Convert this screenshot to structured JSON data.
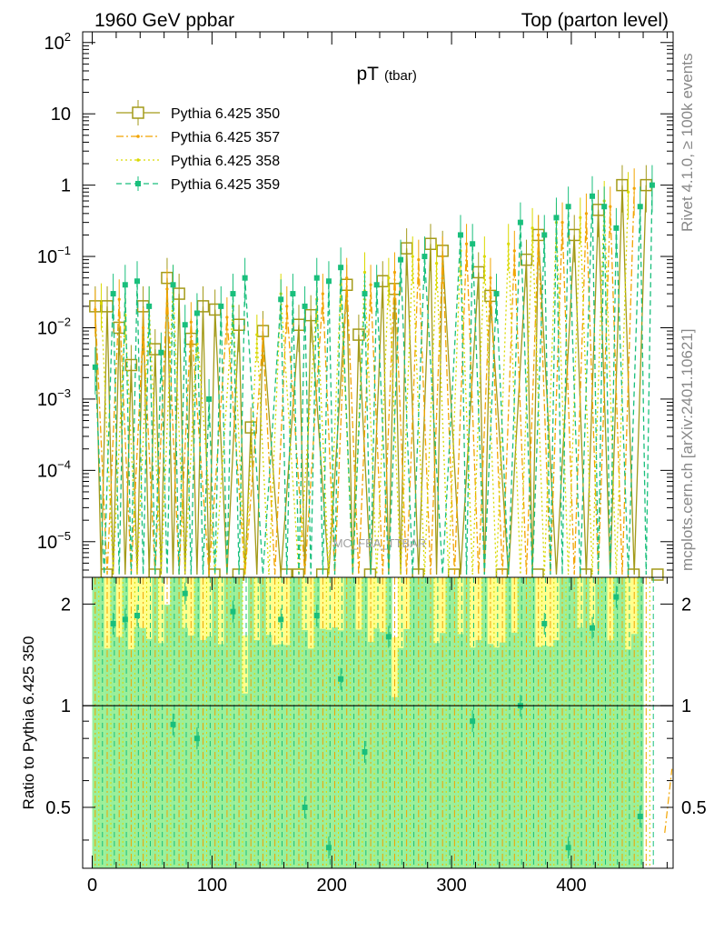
{
  "header": {
    "left": "1960 GeV ppbar",
    "right": "Top (parton level)"
  },
  "side_labels": {
    "rivet": "Rivet 4.1.0, ≥ 100k events",
    "mcplots": "mcplots.cern.ch [arXiv:2401.10621]"
  },
  "chart_data": [
    {
      "type": "line",
      "panel": "main",
      "title_main": "pT",
      "title_sub": "(tbar)",
      "watermark": "MC_FBA_TTBAR",
      "xlabel": "",
      "ylabel": "",
      "xlim": [
        -8,
        485
      ],
      "ylim_log10": [
        -5.5,
        2.15
      ],
      "yscale": "log",
      "y_ticks": [
        {
          "exp": -5,
          "label": "10",
          "sup": "−5"
        },
        {
          "exp": -4,
          "label": "10",
          "sup": "−4"
        },
        {
          "exp": -3,
          "label": "10",
          "sup": "−3"
        },
        {
          "exp": -2,
          "label": "10",
          "sup": "−2"
        },
        {
          "exp": -1,
          "label": "10",
          "sup": "−1"
        },
        {
          "exp": 0,
          "label": "1",
          "sup": ""
        },
        {
          "exp": 1,
          "label": "10",
          "sup": ""
        },
        {
          "exp": 2,
          "label": "10",
          "sup": "2"
        }
      ],
      "legend_position": "top-left",
      "series": [
        {
          "name": "Pythia 6.425 350",
          "color": "#a39a19",
          "style": "solid",
          "marker": "open-square",
          "x": [
            2.5,
            12.5,
            22.5,
            32.5,
            42.5,
            52.5,
            62.5,
            72.5,
            82.5,
            92.5,
            102.5,
            122.5,
            132.5,
            142.5,
            172.5,
            182.5,
            212.5,
            222.5,
            242.5,
            252.5,
            262.5,
            282.5,
            292.5,
            322.5,
            332.5,
            362.5,
            372.5,
            402.5,
            422.5,
            442.5,
            462.5
          ],
          "y": [
            0.02,
            0.02,
            0.01,
            0.003,
            0.02,
            0.005,
            0.05,
            0.03,
            0.007,
            0.02,
            0.018,
            0.011,
            0.0004,
            0.009,
            0.011,
            0.015,
            0.04,
            0.008,
            0.045,
            0.035,
            0.13,
            0.15,
            0.12,
            0.06,
            0.028,
            0.09,
            0.2,
            0.2,
            0.45,
            1.0,
            1.0
          ]
        },
        {
          "name": "Pythia 6.425 357",
          "color": "#f2a400",
          "style": "dashdot",
          "marker": "dot",
          "x": [
            2.5,
            22.5,
            42.5,
            62.5,
            82.5,
            112.5,
            142.5,
            162.5,
            192.5,
            212.5,
            232.5,
            252.5,
            272.5,
            292.5,
            312.5,
            332.5,
            352.5,
            372.5,
            392.5,
            412.5,
            432.5,
            452.5
          ],
          "y": [
            0.018,
            0.025,
            0.01,
            0.035,
            0.012,
            0.014,
            0.007,
            0.02,
            0.03,
            0.05,
            0.04,
            0.06,
            0.09,
            0.1,
            0.15,
            0.05,
            0.12,
            0.2,
            0.3,
            0.4,
            0.5,
            0.9
          ]
        },
        {
          "name": "Pythia 6.425 358",
          "color": "#d9d900",
          "style": "dotted",
          "marker": "dot",
          "x": [
            7.5,
            27.5,
            47.5,
            67.5,
            87.5,
            117.5,
            137.5,
            157.5,
            187.5,
            207.5,
            227.5,
            247.5,
            267.5,
            287.5,
            307.5,
            327.5,
            347.5,
            367.5,
            387.5,
            407.5,
            427.5,
            447.5
          ],
          "y": [
            0.022,
            0.015,
            0.02,
            0.04,
            0.009,
            0.02,
            0.008,
            0.03,
            0.025,
            0.04,
            0.06,
            0.05,
            0.1,
            0.08,
            0.12,
            0.1,
            0.15,
            0.25,
            0.3,
            0.35,
            0.6,
            0.8
          ]
        },
        {
          "name": "Pythia 6.425 359",
          "color": "#19bf7c",
          "style": "dashed",
          "marker": "filled-square",
          "x": [
            2.5,
            17.5,
            27.5,
            37.5,
            47.5,
            57.5,
            67.5,
            77.5,
            87.5,
            97.5,
            107.5,
            117.5,
            127.5,
            157.5,
            167.5,
            177.5,
            187.5,
            197.5,
            207.5,
            227.5,
            237.5,
            257.5,
            277.5,
            307.5,
            317.5,
            337.5,
            357.5,
            377.5,
            387.5,
            397.5,
            417.5,
            427.5,
            437.5,
            457.5,
            467.5
          ],
          "y": [
            0.0028,
            0.03,
            0.04,
            0.045,
            0.02,
            0.0045,
            0.04,
            0.011,
            0.016,
            0.001,
            0.02,
            0.03,
            0.05,
            0.025,
            0.03,
            0.02,
            0.05,
            0.045,
            0.07,
            0.03,
            0.04,
            0.09,
            0.1,
            0.2,
            0.15,
            0.03,
            0.3,
            0.2,
            0.35,
            0.5,
            0.7,
            0.5,
            0.25,
            0.5,
            1.0
          ]
        }
      ]
    },
    {
      "type": "line",
      "panel": "ratio",
      "ylabel": "Ratio to Pythia 6.425 350",
      "ylim": [
        0.33,
        2.4
      ],
      "yscale": "log",
      "y_ticks": [
        0.5,
        1,
        2
      ],
      "y_tick_labels": [
        "0.5",
        "1",
        "2"
      ],
      "x_ticks": [
        0,
        100,
        200,
        300,
        400
      ],
      "x_tick_labels": [
        "0",
        "100",
        "200",
        "300",
        "400"
      ],
      "reference_line": 1.0,
      "band_colors": {
        "outer": "#ffff8c",
        "inner": "#9aef9a"
      },
      "ratio_points": {
        "name": "Pythia 6.425 359",
        "color": "#19bf7c",
        "x": [
          17.5,
          27.5,
          37.5,
          67.5,
          77.5,
          87.5,
          117.5,
          157.5,
          177.5,
          187.5,
          197.5,
          207.5,
          227.5,
          247.5,
          317.5,
          357.5,
          377.5,
          397.5,
          417.5,
          437.5,
          457.5
        ],
        "y": [
          1.75,
          1.8,
          1.85,
          0.88,
          2.15,
          0.8,
          1.9,
          1.8,
          0.5,
          1.85,
          0.38,
          1.2,
          0.73,
          1.6,
          0.9,
          1.0,
          1.75,
          0.38,
          1.7,
          2.1,
          0.47
        ]
      }
    }
  ]
}
